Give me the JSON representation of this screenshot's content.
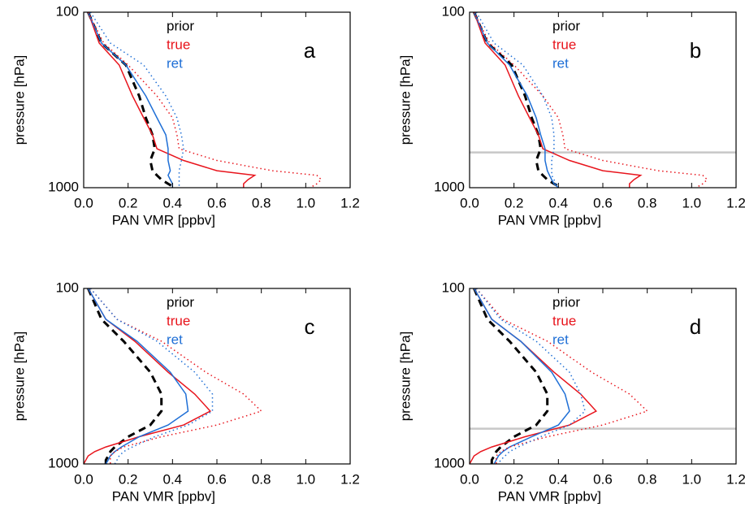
{
  "chart_data": [
    {
      "type": "profile",
      "label": "a",
      "x_label": "PAN VMR [ppbv]",
      "y_label": "pressure [hPa]",
      "log_y": true,
      "xlim": [
        0,
        1.2
      ],
      "xticks": [
        {
          "value": 0,
          "label": "0.0"
        },
        0.2,
        0.4,
        0.6,
        0.8,
        {
          "value": 1,
          "label": "1.0"
        },
        1.2
      ],
      "ylim": [
        100,
        1000
      ],
      "yticks": [
        100,
        1000
      ],
      "y": [
        100,
        150,
        200,
        300,
        400,
        500,
        600,
        700,
        800,
        850,
        900,
        950,
        1000
      ],
      "series": [
        {
          "name": "prior",
          "color": "#000000",
          "dash": "dash",
          "values": [
            0.02,
            0.08,
            0.19,
            0.25,
            0.28,
            0.31,
            0.32,
            0.3,
            0.31,
            0.33,
            0.35,
            0.38,
            0.41
          ]
        },
        {
          "name": "true",
          "color": "#e8141c",
          "dash": "solid",
          "values": [
            0.02,
            0.07,
            0.16,
            0.22,
            0.27,
            0.31,
            0.33,
            0.45,
            0.6,
            0.77,
            0.74,
            0.72,
            0.72
          ]
        },
        {
          "name": "ret",
          "color": "#1f6fd6",
          "dash": "solid",
          "values": [
            0.02,
            0.08,
            0.19,
            0.28,
            0.33,
            0.37,
            0.38,
            0.38,
            0.39,
            0.38,
            0.39,
            0.4,
            0.4
          ]
        },
        {
          "color": "#e8141c",
          "dash": "dot",
          "values": [
            0.02,
            0.09,
            0.2,
            0.33,
            0.4,
            0.42,
            0.43,
            0.6,
            0.85,
            1.05,
            1.07,
            1.05,
            1.02
          ]
        },
        {
          "color": "#1f6fd6",
          "dash": "dot",
          "values": [
            0.03,
            0.12,
            0.27,
            0.37,
            0.42,
            0.44,
            0.45,
            0.44,
            0.43,
            0.43,
            0.43,
            0.43,
            0.43
          ]
        }
      ]
    },
    {
      "type": "profile",
      "label": "b",
      "x_label": "PAN VMR [ppbv]",
      "y_label": "pressure [hPa]",
      "log_y": true,
      "xlim": [
        0,
        1.2
      ],
      "xticks": [
        {
          "value": 0,
          "label": "0.0"
        },
        0.2,
        0.4,
        0.6,
        0.8,
        {
          "value": 1,
          "label": "1.0"
        },
        1.2
      ],
      "ylim": [
        100,
        1000
      ],
      "yticks": [
        100,
        1000
      ],
      "hline": 630,
      "hline_color": "#c8c8c8",
      "y": [
        100,
        150,
        200,
        300,
        400,
        500,
        600,
        700,
        800,
        850,
        900,
        950,
        1000
      ],
      "series": [
        {
          "name": "prior",
          "color": "#000000",
          "dash": "dash",
          "values": [
            0.02,
            0.08,
            0.19,
            0.25,
            0.28,
            0.31,
            0.32,
            0.3,
            0.31,
            0.33,
            0.35,
            0.38,
            0.41
          ]
        },
        {
          "name": "true",
          "color": "#e8141c",
          "dash": "solid",
          "values": [
            0.02,
            0.07,
            0.16,
            0.22,
            0.27,
            0.31,
            0.33,
            0.45,
            0.6,
            0.77,
            0.74,
            0.72,
            0.72
          ]
        },
        {
          "name": "ret",
          "color": "#1f6fd6",
          "dash": "solid",
          "values": [
            0.02,
            0.08,
            0.18,
            0.26,
            0.3,
            0.32,
            0.34,
            0.34,
            0.35,
            0.36,
            0.37,
            0.38,
            0.4
          ]
        },
        {
          "color": "#e8141c",
          "dash": "dot",
          "values": [
            0.02,
            0.09,
            0.2,
            0.33,
            0.4,
            0.42,
            0.43,
            0.6,
            0.85,
            1.05,
            1.07,
            1.05,
            1.02
          ]
        },
        {
          "color": "#1f6fd6",
          "dash": "dot",
          "values": [
            0.03,
            0.11,
            0.24,
            0.33,
            0.37,
            0.38,
            0.38,
            0.37,
            0.37,
            0.37,
            0.38,
            0.39,
            0.4
          ]
        }
      ]
    },
    {
      "type": "profile",
      "label": "c",
      "x_label": "PAN VMR [ppbv]",
      "y_label": "pressure [hPa]",
      "log_y": true,
      "xlim": [
        0,
        1.2
      ],
      "xticks": [
        {
          "value": 0,
          "label": "0.0"
        },
        0.2,
        0.4,
        0.6,
        0.8,
        {
          "value": 1,
          "label": "1.0"
        },
        1.2
      ],
      "ylim": [
        100,
        1000
      ],
      "yticks": [
        100,
        1000
      ],
      "y": [
        100,
        150,
        200,
        300,
        400,
        500,
        600,
        700,
        800,
        850,
        900,
        950,
        1000
      ],
      "series": [
        {
          "name": "prior",
          "color": "#000000",
          "dash": "dash",
          "values": [
            0.02,
            0.08,
            0.18,
            0.3,
            0.35,
            0.35,
            0.3,
            0.2,
            0.14,
            0.12,
            0.11,
            0.1,
            0.1
          ]
        },
        {
          "name": "true",
          "color": "#e8141c",
          "dash": "solid",
          "values": [
            0.02,
            0.1,
            0.23,
            0.38,
            0.5,
            0.57,
            0.45,
            0.25,
            0.1,
            0.05,
            0.02,
            0.01,
            0
          ]
        },
        {
          "name": "ret",
          "color": "#1f6fd6",
          "dash": "solid",
          "values": [
            0.02,
            0.1,
            0.24,
            0.39,
            0.46,
            0.47,
            0.38,
            0.25,
            0.17,
            0.14,
            0.12,
            0.11,
            0.1
          ]
        },
        {
          "color": "#e8141c",
          "dash": "dot",
          "values": [
            0.03,
            0.15,
            0.35,
            0.55,
            0.72,
            0.8,
            0.6,
            0.35,
            0.18,
            0.14,
            0.12,
            0.12,
            0.12
          ]
        },
        {
          "color": "#1f6fd6",
          "dash": "dot",
          "values": [
            0.03,
            0.15,
            0.33,
            0.5,
            0.58,
            0.58,
            0.47,
            0.32,
            0.22,
            0.18,
            0.16,
            0.15,
            0.14
          ]
        }
      ]
    },
    {
      "type": "profile",
      "label": "d",
      "x_label": "PAN VMR [ppbv]",
      "y_label": "pressure [hPa]",
      "log_y": true,
      "xlim": [
        0,
        1.2
      ],
      "xticks": [
        {
          "value": 0,
          "label": "0.0"
        },
        0.2,
        0.4,
        0.6,
        0.8,
        {
          "value": 1,
          "label": "1.0"
        },
        1.2
      ],
      "ylim": [
        100,
        1000
      ],
      "yticks": [
        100,
        1000
      ],
      "hline": 630,
      "hline_color": "#c8c8c8",
      "y": [
        100,
        150,
        200,
        300,
        400,
        500,
        600,
        700,
        800,
        850,
        900,
        950,
        1000
      ],
      "series": [
        {
          "name": "prior",
          "color": "#000000",
          "dash": "dash",
          "values": [
            0.02,
            0.08,
            0.18,
            0.3,
            0.35,
            0.35,
            0.3,
            0.2,
            0.14,
            0.12,
            0.11,
            0.1,
            0.1
          ]
        },
        {
          "name": "true",
          "color": "#e8141c",
          "dash": "solid",
          "values": [
            0.02,
            0.1,
            0.23,
            0.38,
            0.5,
            0.57,
            0.45,
            0.25,
            0.1,
            0.05,
            0.02,
            0.01,
            0
          ]
        },
        {
          "name": "ret",
          "color": "#1f6fd6",
          "dash": "solid",
          "values": [
            0.02,
            0.1,
            0.23,
            0.37,
            0.43,
            0.45,
            0.4,
            0.28,
            0.18,
            0.15,
            0.13,
            0.12,
            0.11
          ]
        },
        {
          "color": "#e8141c",
          "dash": "dot",
          "values": [
            0.03,
            0.15,
            0.35,
            0.55,
            0.72,
            0.8,
            0.6,
            0.35,
            0.18,
            0.14,
            0.12,
            0.12,
            0.12
          ]
        },
        {
          "color": "#1f6fd6",
          "dash": "dot",
          "values": [
            0.03,
            0.14,
            0.3,
            0.45,
            0.5,
            0.52,
            0.45,
            0.32,
            0.22,
            0.18,
            0.16,
            0.14,
            0.13
          ]
        }
      ]
    }
  ]
}
